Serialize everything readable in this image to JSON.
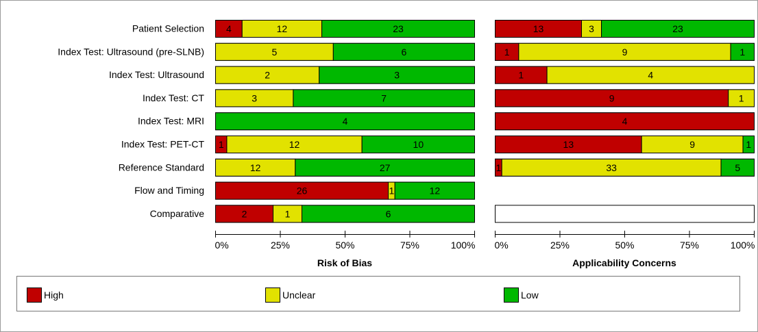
{
  "colors": {
    "high": "#c00000",
    "unclear": "#e2e200",
    "low": "#00b800"
  },
  "legend": {
    "high": "High",
    "unclear": "Unclear",
    "low": "Low"
  },
  "chart_data": [
    {
      "type": "bar",
      "orientation": "horizontal",
      "stacked": "percent",
      "xlabel": "Risk of Bias",
      "ticks": [
        "0%",
        "25%",
        "50%",
        "75%",
        "100%"
      ],
      "categories": [
        "Patient Selection",
        "Index Test: Ultrasound (pre-SLNB)",
        "Index Test: Ultrasound",
        "Index Test: CT",
        "Index Test: MRI",
        "Index Test: PET-CT",
        "Reference Standard",
        "Flow and Timing",
        "Comparative"
      ],
      "series": [
        {
          "name": "High",
          "values": [
            4,
            0,
            0,
            0,
            0,
            1,
            0,
            26,
            2
          ]
        },
        {
          "name": "Unclear",
          "values": [
            12,
            5,
            2,
            3,
            0,
            12,
            12,
            1,
            1
          ]
        },
        {
          "name": "Low",
          "values": [
            23,
            6,
            3,
            7,
            4,
            10,
            27,
            12,
            6
          ]
        }
      ]
    },
    {
      "type": "bar",
      "orientation": "horizontal",
      "stacked": "percent",
      "xlabel": "Applicability Concerns",
      "ticks": [
        "0%",
        "25%",
        "50%",
        "75%",
        "100%"
      ],
      "categories": [
        "Patient Selection",
        "Index Test: Ultrasound (pre-SLNB)",
        "Index Test: Ultrasound",
        "Index Test: CT",
        "Index Test: MRI",
        "Index Test: PET-CT",
        "Reference Standard",
        "Flow and Timing",
        "Comparative"
      ],
      "series": [
        {
          "name": "High",
          "values": [
            13,
            1,
            1,
            9,
            4,
            13,
            1,
            null,
            0
          ]
        },
        {
          "name": "Unclear",
          "values": [
            3,
            9,
            4,
            1,
            0,
            9,
            33,
            null,
            0
          ]
        },
        {
          "name": "Low",
          "values": [
            23,
            1,
            0,
            0,
            0,
            1,
            5,
            null,
            0
          ]
        }
      ]
    }
  ]
}
